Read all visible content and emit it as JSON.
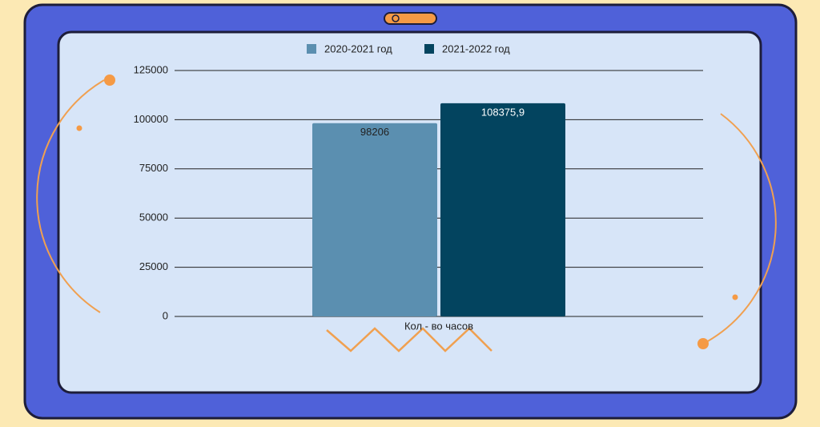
{
  "chart_data": {
    "type": "bar",
    "categories": [
      "Кол - во часов"
    ],
    "series": [
      {
        "name": "2020-2021 год",
        "color": "#5b8fb0",
        "values": [
          98206
        ]
      },
      {
        "name": "2021-2022 год",
        "color": "#03445f",
        "values": [
          108375.9
        ],
        "value_labels": [
          "108375,9"
        ]
      }
    ],
    "ylim": [
      0,
      125000
    ],
    "yticks": [
      0,
      25000,
      50000,
      75000,
      100000,
      125000
    ],
    "grid": true
  }
}
